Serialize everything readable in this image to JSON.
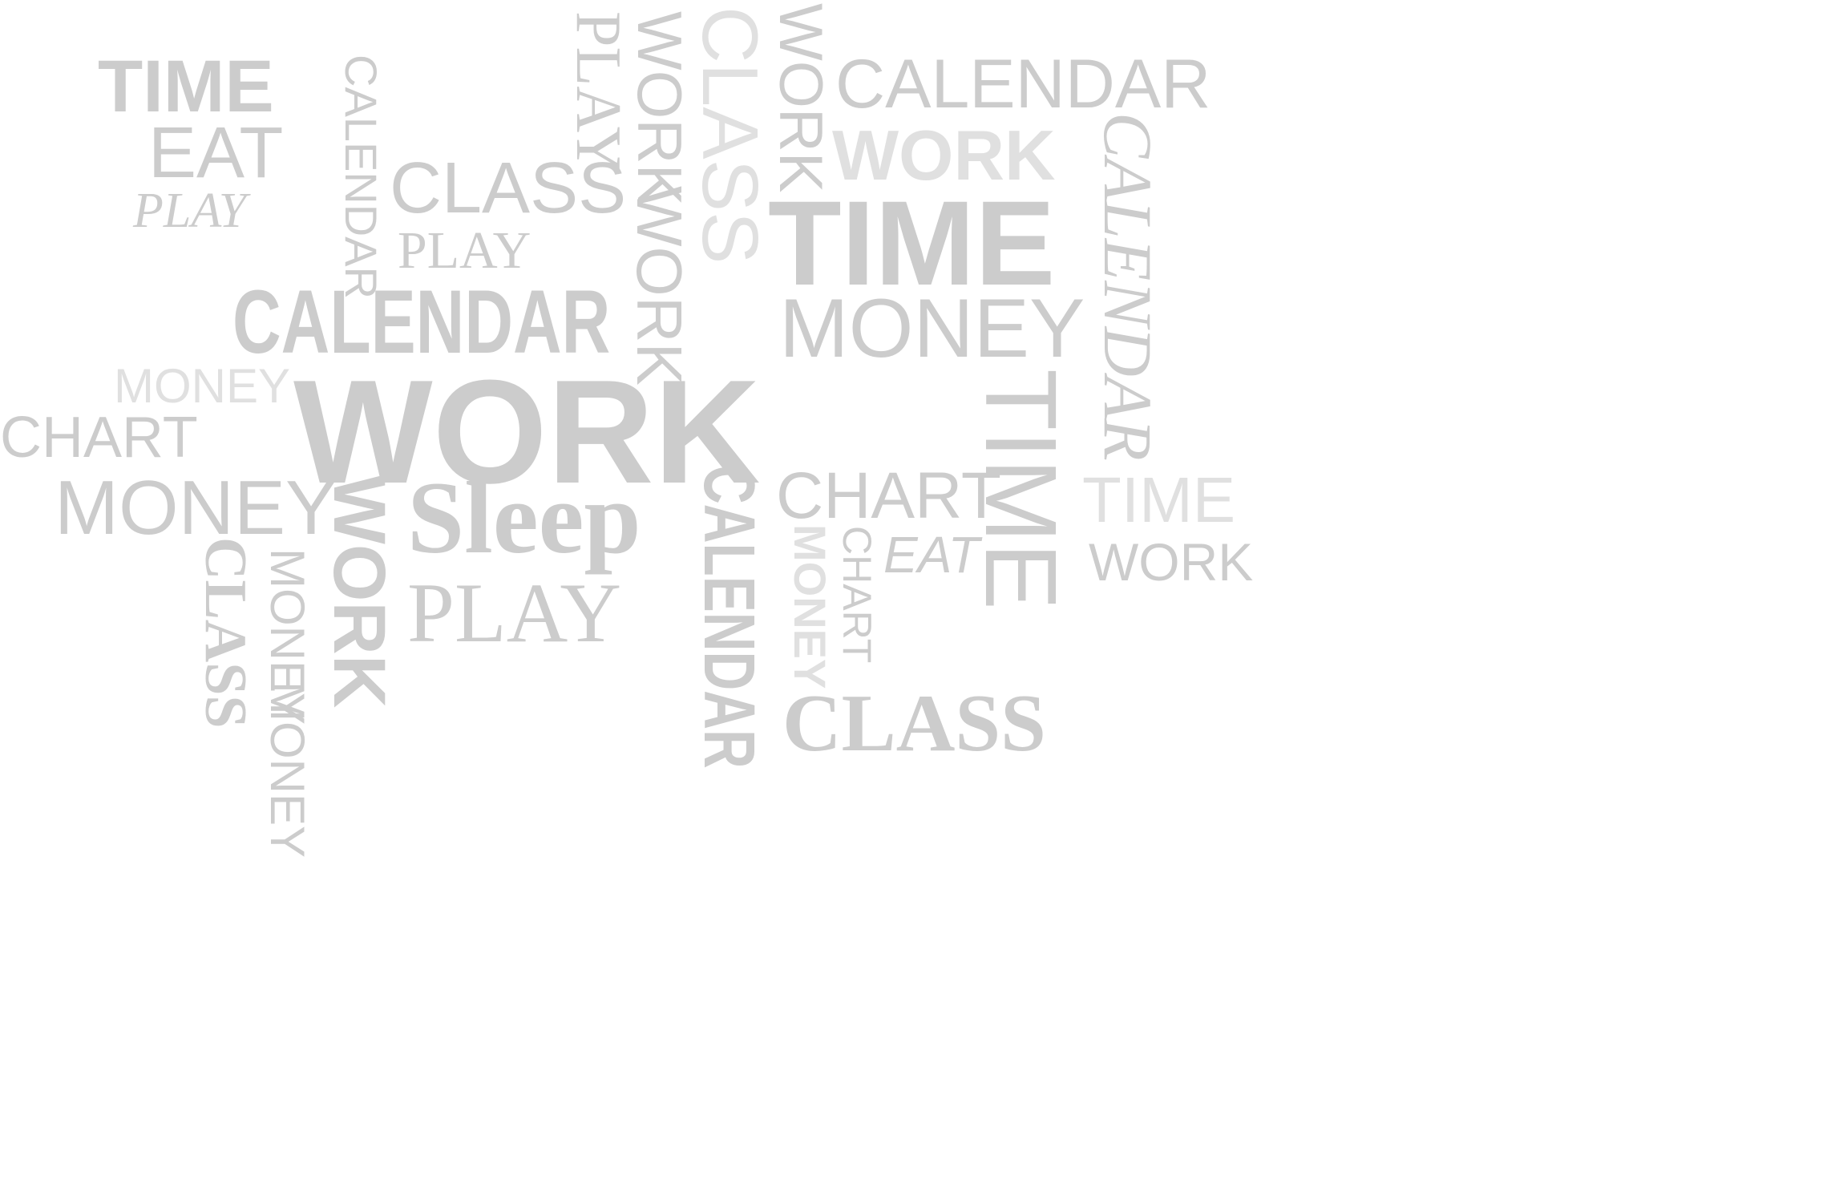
{
  "words": {
    "time_1": "TIME",
    "eat_1": "EAT",
    "play_1": "PLAY",
    "calendar_v1": "CALENDAR",
    "class_1": "CLASS",
    "play_2": "PLAY",
    "calendar_big": "CALENDAR",
    "play_v1": "PLAY",
    "work_v1": "WORK",
    "work_v2": "WORK",
    "class_v1": "CLASS",
    "work_v3": "WORK",
    "calendar_2": "CALENDAR",
    "work_1": "WORK",
    "time_2": "TIME",
    "calendar_v2": "CALENDAR",
    "money_1": "MONEY",
    "money_2": "MONEY",
    "work_big": "WORK",
    "chart_1": "CHART",
    "money_3": "MONEY",
    "time_v1": "TIME",
    "chart_2": "CHART",
    "time_3": "TIME",
    "work_4": "WORK",
    "eat_2": "EAT",
    "chart_v1": "CHART",
    "money_v1": "MONEY",
    "calendar_v3": "CALENDAR",
    "sleep": "Sleep",
    "play_3": "PLAY",
    "work_v4": "WORK",
    "money_v2": "MONEY",
    "money_v3": "MONEY",
    "class_v2": "CLASS",
    "class_2": "CLASS"
  }
}
